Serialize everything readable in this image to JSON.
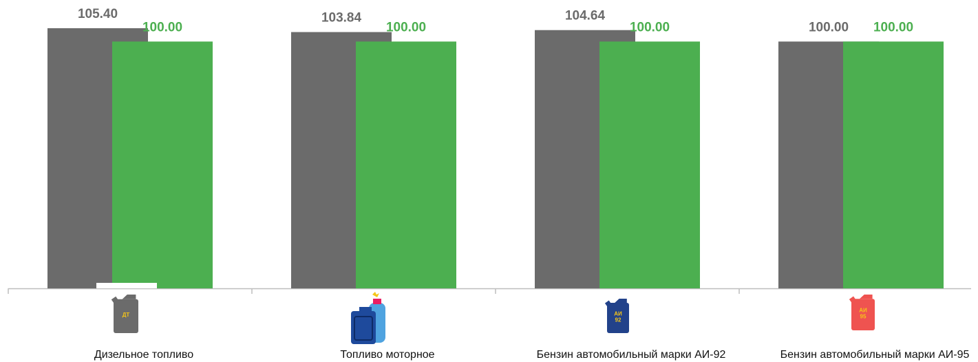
{
  "chart_data": {
    "type": "bar",
    "categories": [
      "Дизельное топливо",
      "Топливо моторное",
      "Бензин автомобильный марки АИ-92",
      "Бензин автомобильный марки АИ-95"
    ],
    "series": [
      {
        "values": [
          105.4,
          103.84,
          104.64,
          100.0
        ],
        "labels": [
          "105.40",
          "103.84",
          "104.64",
          "100.00"
        ],
        "color": "#6b6b6b",
        "label_color": "#6b6b6b"
      },
      {
        "values": [
          100.0,
          100.0,
          100.0,
          100.0
        ],
        "labels": [
          "100.00",
          "100.00",
          "100.00",
          "100.00"
        ],
        "color": "#4caf50",
        "label_color": "#4caf50"
      }
    ],
    "ylim": [
      0,
      105.4
    ],
    "grid": false,
    "legend": "none"
  },
  "icons": [
    {
      "name": "diesel-canister-icon",
      "text": [
        "ДТ"
      ],
      "color": "#6b6b6b",
      "text_color": "#f5c518"
    },
    {
      "name": "motor-fuel-canister-gas-cylinder-icon",
      "text": [],
      "color": "#1e4a9c",
      "accent": "#4fa3e0"
    },
    {
      "name": "ai92-canister-icon",
      "text": [
        "АИ",
        "92"
      ],
      "color": "#22428a",
      "text_color": "#f5c518"
    },
    {
      "name": "ai95-canister-icon",
      "text": [
        "АИ",
        "95"
      ],
      "color": "#ef5350",
      "text_color": "#f5c518"
    }
  ]
}
